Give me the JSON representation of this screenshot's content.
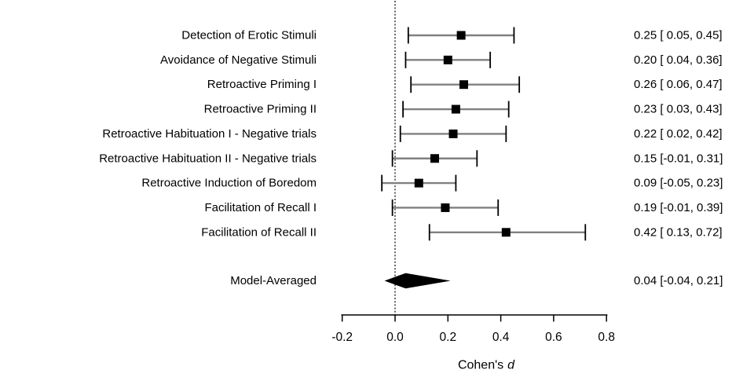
{
  "chart_data": {
    "type": "forest",
    "xlabel": "Cohen's d",
    "xlabel_regular": "Cohen's",
    "xlabel_emph": "d",
    "xlim": [
      -0.2,
      0.8
    ],
    "x_ticks": [
      -0.2,
      0.0,
      0.2,
      0.4,
      0.6,
      0.8
    ],
    "x_tick_labels": [
      "-0.2",
      "0.0",
      "0.2",
      "0.4",
      "0.6",
      "0.8"
    ],
    "zero_line": 0.0,
    "grid": false,
    "studies": [
      {
        "label": "Detection of Erotic Stimuli",
        "estimate": 0.25,
        "lower": 0.05,
        "upper": 0.45,
        "annotation": "0.25 [ 0.05, 0.45]"
      },
      {
        "label": "Avoidance of Negative Stimuli",
        "estimate": 0.2,
        "lower": 0.04,
        "upper": 0.36,
        "annotation": "0.20 [ 0.04, 0.36]"
      },
      {
        "label": "Retroactive Priming I",
        "estimate": 0.26,
        "lower": 0.06,
        "upper": 0.47,
        "annotation": "0.26 [ 0.06, 0.47]"
      },
      {
        "label": "Retroactive Priming II",
        "estimate": 0.23,
        "lower": 0.03,
        "upper": 0.43,
        "annotation": "0.23 [ 0.03, 0.43]"
      },
      {
        "label": "Retroactive Habituation I - Negative trials",
        "estimate": 0.22,
        "lower": 0.02,
        "upper": 0.42,
        "annotation": "0.22 [ 0.02, 0.42]"
      },
      {
        "label": "Retroactive Habituation II - Negative trials",
        "estimate": 0.15,
        "lower": -0.01,
        "upper": 0.31,
        "annotation": "0.15 [-0.01, 0.31]"
      },
      {
        "label": "Retroactive Induction of Boredom",
        "estimate": 0.09,
        "lower": -0.05,
        "upper": 0.23,
        "annotation": "0.09 [-0.05, 0.23]"
      },
      {
        "label": "Facilitation of Recall I",
        "estimate": 0.19,
        "lower": -0.01,
        "upper": 0.39,
        "annotation": "0.19 [-0.01, 0.39]"
      },
      {
        "label": "Facilitation of Recall II",
        "estimate": 0.42,
        "lower": 0.13,
        "upper": 0.72,
        "annotation": "0.42 [ 0.13, 0.72]"
      }
    ],
    "summary": {
      "label": "Model-Averaged",
      "estimate": 0.04,
      "lower": -0.04,
      "upper": 0.21,
      "annotation": "0.04 [-0.04, 0.21]"
    },
    "colors": {
      "background": "#ffffff",
      "interval_line": "#808080",
      "cap": "#000000",
      "marker": "#000000",
      "diamond": "#000000",
      "axis": "#000000",
      "text": "#000000"
    }
  }
}
